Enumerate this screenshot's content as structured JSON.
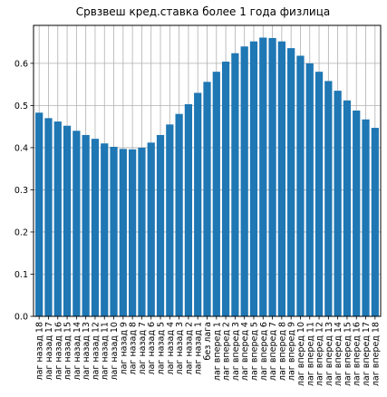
{
  "chart_data": {
    "type": "bar",
    "title": "Срвзвеш кред.ставка более 1 года физлица",
    "xlabel": "",
    "ylabel": "",
    "ylim": [
      0,
      0.69
    ],
    "yticks": [
      0.0,
      0.1,
      0.2,
      0.3,
      0.4,
      0.5,
      0.6
    ],
    "ytick_labels": [
      "0.0",
      "0.1",
      "0.2",
      "0.3",
      "0.4",
      "0.5",
      "0.6"
    ],
    "grid": true,
    "bar_color": "#1f77b4",
    "categories": [
      "лаг назад 18",
      "лаг назад 17",
      "лаг назад 16",
      "лаг назад 15",
      "лаг назад 14",
      "лаг назад 13",
      "лаг назад 12",
      "лаг назад 11",
      "лаг назад 10",
      "лаг назад 9",
      "лаг назад 8",
      "лаг назад 7",
      "лаг назад 6",
      "лаг назад 5",
      "лаг назад 4",
      "лаг назад 3",
      "лаг назад 2",
      "лаг назад 1",
      "без лага",
      "лаг вперед 1",
      "лаг вперед 2",
      "лаг вперед 3",
      "лаг вперед 4",
      "лаг вперед 5",
      "лаг вперед 6",
      "лаг вперед 7",
      "лаг вперед 8",
      "лаг вперед 9",
      "лаг вперед 10",
      "лаг вперед 11",
      "лаг вперед 12",
      "лаг вперед 13",
      "лаг вперед 14",
      "лаг вперед 15",
      "лаг вперед 16",
      "лаг вперед 17",
      "лаг вперед 18"
    ],
    "values": [
      0.483,
      0.47,
      0.462,
      0.452,
      0.44,
      0.43,
      0.421,
      0.41,
      0.402,
      0.397,
      0.396,
      0.4,
      0.412,
      0.43,
      0.455,
      0.48,
      0.503,
      0.53,
      0.556,
      0.58,
      0.604,
      0.624,
      0.64,
      0.652,
      0.661,
      0.66,
      0.652,
      0.636,
      0.618,
      0.6,
      0.58,
      0.558,
      0.535,
      0.512,
      0.488,
      0.467,
      0.447
    ]
  }
}
